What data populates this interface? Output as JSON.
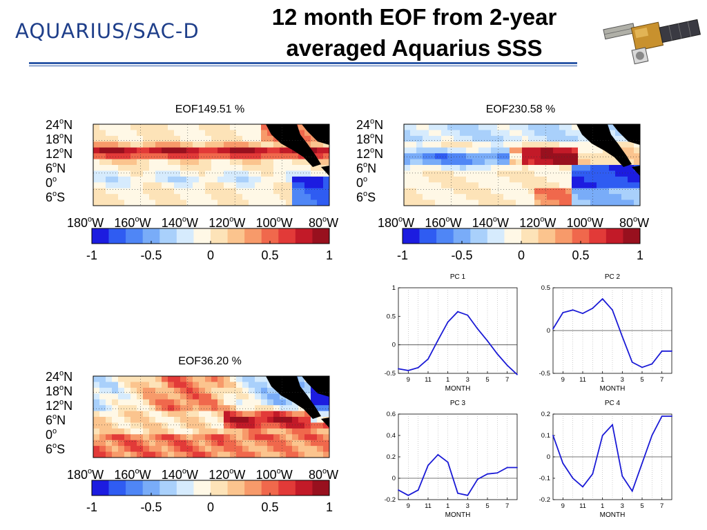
{
  "header": {
    "logo_text": "AQUARIUS/SAC-D",
    "title_line1": "12 month EOF from 2-year",
    "title_line2": "averaged Aquarius SSS",
    "logo_color": "#2a4a9c",
    "rule_color": "#2f5aa8"
  },
  "maps": [
    {
      "title": "EOF149.51 %",
      "lat_labels": [
        "24",
        "18",
        "12",
        "6",
        "0",
        "6"
      ],
      "lat_suffix": [
        "N",
        "N",
        "N",
        "N",
        "",
        "S"
      ],
      "lon_labels": [
        "180",
        "160",
        "140",
        "120",
        "100",
        "80"
      ],
      "lon_suffix": [
        "W",
        "W",
        "W",
        "W",
        "W",
        "W"
      ]
    },
    {
      "title": "EOF230.58 %",
      "lat_labels": [
        "24",
        "18",
        "12",
        "6",
        "0",
        "6"
      ],
      "lat_suffix": [
        "N",
        "N",
        "N",
        "N",
        "",
        "S"
      ],
      "lon_labels": [
        "180",
        "160",
        "140",
        "120",
        "100",
        "80"
      ],
      "lon_suffix": [
        "W",
        "W",
        "W",
        "W",
        "W",
        "W"
      ]
    },
    {
      "title": "EOF36.20 %",
      "lat_labels": [
        "24",
        "18",
        "12",
        "6",
        "0",
        "6"
      ],
      "lat_suffix": [
        "N",
        "N",
        "N",
        "N",
        "",
        "S"
      ],
      "lon_labels": [
        "180",
        "160",
        "140",
        "120",
        "100",
        "80"
      ],
      "lon_suffix": [
        "W",
        "W",
        "W",
        "W",
        "W",
        "W"
      ]
    }
  ],
  "colorbar": {
    "ticks": [
      "-1",
      "-0.5",
      "0",
      "0.5",
      "1"
    ],
    "colors": [
      "#1c1ce0",
      "#2f5cf2",
      "#4f86f6",
      "#79acf8",
      "#a9d0fb",
      "#d6ebfd",
      "#fff8e6",
      "#fde3b8",
      "#fbc48e",
      "#f79a6a",
      "#f0684c",
      "#e23a38",
      "#c21a28",
      "#98101e"
    ]
  },
  "chart_data": [
    {
      "type": "line",
      "title": "PC 1",
      "xlabel": "MONTH",
      "x_ticks": [
        "9",
        "11",
        "1",
        "3",
        "5",
        "7"
      ],
      "x": [
        "8",
        "9",
        "10",
        "11",
        "12",
        "1",
        "2",
        "3",
        "4",
        "5",
        "6",
        "7",
        "8"
      ],
      "values": [
        -0.42,
        -0.45,
        -0.4,
        -0.25,
        0.08,
        0.4,
        0.58,
        0.52,
        0.28,
        0.07,
        -0.16,
        -0.36,
        -0.52
      ],
      "ylim": [
        -0.5,
        1
      ],
      "y_ticks": [
        "-0.5",
        "0",
        "0.5",
        "1"
      ],
      "y_tick_values": [
        -0.5,
        0,
        0.5,
        1
      ]
    },
    {
      "type": "line",
      "title": "PC 2",
      "xlabel": "MONTH",
      "x_ticks": [
        "9",
        "11",
        "1",
        "3",
        "5",
        "7"
      ],
      "x": [
        "8",
        "9",
        "10",
        "11",
        "12",
        "1",
        "2",
        "3",
        "4",
        "5",
        "6",
        "7",
        "8"
      ],
      "values": [
        0.02,
        0.21,
        0.24,
        0.2,
        0.26,
        0.37,
        0.24,
        -0.07,
        -0.37,
        -0.43,
        -0.39,
        -0.24,
        -0.24
      ],
      "ylim": [
        -0.5,
        0.5
      ],
      "y_ticks": [
        "-0.5",
        "0",
        "0.5"
      ],
      "y_tick_values": [
        -0.5,
        0,
        0.5
      ]
    },
    {
      "type": "line",
      "title": "PC 3",
      "xlabel": "MONTH",
      "x_ticks": [
        "9",
        "11",
        "1",
        "3",
        "5",
        "7"
      ],
      "x": [
        "8",
        "9",
        "10",
        "11",
        "12",
        "1",
        "2",
        "3",
        "4",
        "5",
        "6",
        "7",
        "8"
      ],
      "values": [
        -0.11,
        -0.16,
        -0.11,
        0.12,
        0.22,
        0.15,
        -0.14,
        -0.16,
        -0.01,
        0.04,
        0.05,
        0.1,
        0.1
      ],
      "ylim": [
        -0.2,
        0.6
      ],
      "y_ticks": [
        "-0.2",
        "0",
        "0.2",
        "0.4",
        "0.6"
      ],
      "y_tick_values": [
        -0.2,
        0,
        0.2,
        0.4,
        0.6
      ]
    },
    {
      "type": "line",
      "title": "PC 4",
      "xlabel": "MONTH",
      "x_ticks": [
        "9",
        "11",
        "1",
        "3",
        "5",
        "7"
      ],
      "x": [
        "8",
        "9",
        "10",
        "11",
        "12",
        "1",
        "2",
        "3",
        "4",
        "5",
        "6",
        "7",
        "8"
      ],
      "values": [
        0.1,
        -0.03,
        -0.1,
        -0.14,
        -0.08,
        0.1,
        0.15,
        -0.09,
        -0.16,
        -0.03,
        0.1,
        0.19,
        0.19
      ],
      "ylim": [
        -0.2,
        0.2
      ],
      "y_ticks": [
        "-0.2",
        "-0.1",
        "0",
        "0.1",
        "0.2"
      ],
      "y_tick_values": [
        -0.2,
        -0.1,
        0,
        0.1,
        0.2
      ]
    }
  ]
}
